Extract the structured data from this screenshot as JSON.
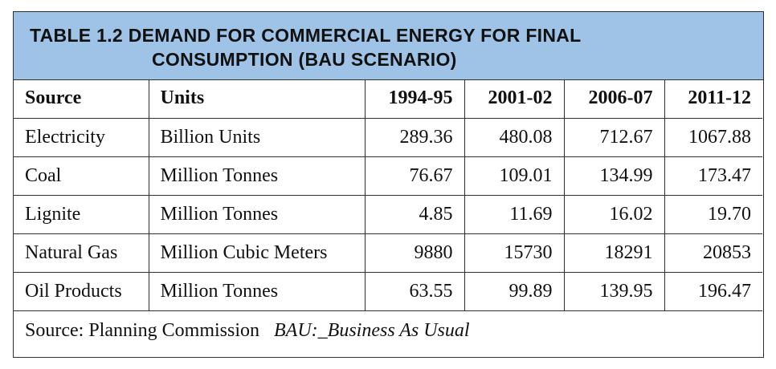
{
  "title": {
    "line1": "TABLE 1.2 DEMAND FOR COMMERCIAL ENERGY FOR FINAL",
    "line2": "CONSUMPTION (BAU SCENARIO)"
  },
  "headers": [
    "Source",
    "Units",
    "1994-95",
    "2001-02",
    "2006-07",
    "2011-12"
  ],
  "rows": [
    [
      "Electricity",
      "Billion Units",
      "289.36",
      "480.08",
      "712.67",
      "1067.88"
    ],
    [
      "Coal",
      "Million Tonnes",
      "76.67",
      "109.01",
      "134.99",
      "173.47"
    ],
    [
      "Lignite",
      "Million Tonnes",
      "4.85",
      "11.69",
      "16.02",
      "19.70"
    ],
    [
      "Natural Gas",
      "Million Cubic Meters",
      "9880",
      "15730",
      "18291",
      "20853"
    ],
    [
      "Oil Products",
      "Million Tonnes",
      "63.55",
      "99.89",
      "139.95",
      "196.47"
    ]
  ],
  "footer": {
    "source_text": "Source:  Planning Commission",
    "note_text": "BAU:_Business As Usual"
  },
  "colors": {
    "title_band": "#9ec3e6",
    "border": "#2f2f2f"
  }
}
